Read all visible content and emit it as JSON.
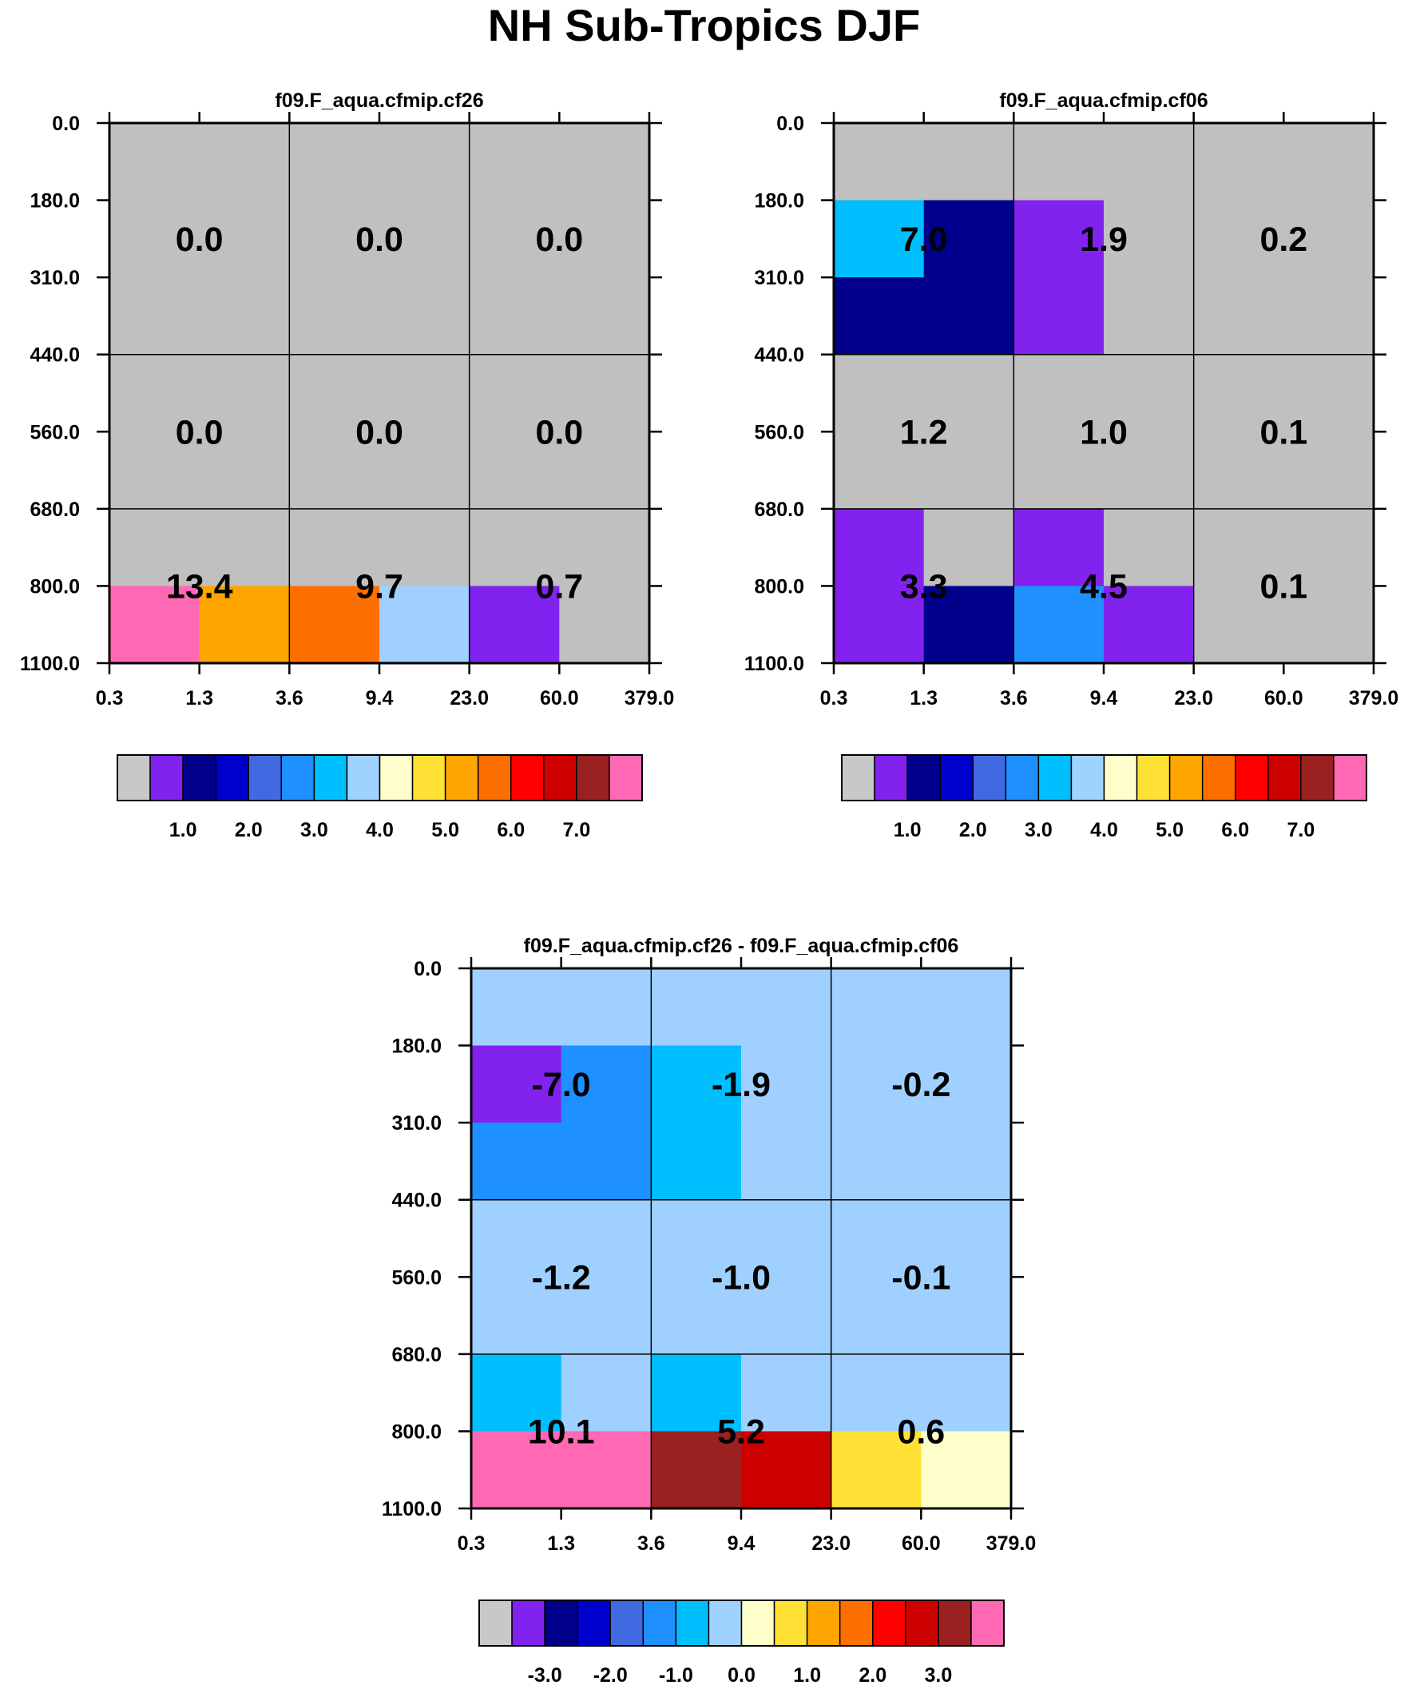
{
  "page_title": "NH Sub-Tropics DJF",
  "colors": {
    "cell_border": "#000000",
    "value_text": "#000000"
  },
  "chart_data": [
    {
      "type": "heatmap",
      "title": "f09.F_aqua.cfmip.cf26",
      "x_tick_labels": [
        "0.3",
        "1.3",
        "3.6",
        "9.4",
        "23.0",
        "60.0",
        "379.0"
      ],
      "y_tick_labels": [
        "0.0",
        "180.0",
        "310.0",
        "440.0",
        "560.0",
        "680.0",
        "800.0",
        "1100.0"
      ],
      "fine_colors": [
        [
          "#C0C0C0",
          "#C0C0C0",
          "#C0C0C0",
          "#C0C0C0",
          "#C0C0C0",
          "#C0C0C0"
        ],
        [
          "#C0C0C0",
          "#C0C0C0",
          "#C0C0C0",
          "#C0C0C0",
          "#C0C0C0",
          "#C0C0C0"
        ],
        [
          "#C0C0C0",
          "#C0C0C0",
          "#C0C0C0",
          "#C0C0C0",
          "#C0C0C0",
          "#C0C0C0"
        ],
        [
          "#C0C0C0",
          "#C0C0C0",
          "#C0C0C0",
          "#C0C0C0",
          "#C0C0C0",
          "#C0C0C0"
        ],
        [
          "#C0C0C0",
          "#C0C0C0",
          "#C0C0C0",
          "#C0C0C0",
          "#C0C0C0",
          "#C0C0C0"
        ],
        [
          "#C0C0C0",
          "#C0C0C0",
          "#C0C0C0",
          "#C0C0C0",
          "#C0C0C0",
          "#C0C0C0"
        ],
        [
          "#FF69B4",
          "#FFA500",
          "#FF6F00",
          "#A0D0FF",
          "#8222EE",
          "#C0C0C0"
        ]
      ],
      "coarse_values": [
        [
          "0.0",
          "0.0",
          "0.0"
        ],
        [
          "0.0",
          "0.0",
          "0.0"
        ],
        [
          "13.4",
          "9.7",
          "0.7"
        ]
      ],
      "colorbar": {
        "colors": [
          "#C8C8C8",
          "#8222EE",
          "#00008B",
          "#0000CD",
          "#4169E1",
          "#1E90FF",
          "#00BFFF",
          "#A0D2FF",
          "#FFFFCC",
          "#FFE135",
          "#FFA500",
          "#FF6F00",
          "#FF0000",
          "#CD0000",
          "#9B2020",
          "#FF69B4"
        ],
        "labels": [
          "1.0",
          "2.0",
          "3.0",
          "4.0",
          "5.0",
          "6.0",
          "7.0"
        ]
      }
    },
    {
      "type": "heatmap",
      "title": "f09.F_aqua.cfmip.cf06",
      "x_tick_labels": [
        "0.3",
        "1.3",
        "3.6",
        "9.4",
        "23.0",
        "60.0",
        "379.0"
      ],
      "y_tick_labels": [
        "0.0",
        "180.0",
        "310.0",
        "440.0",
        "560.0",
        "680.0",
        "800.0",
        "1100.0"
      ],
      "fine_colors": [
        [
          "#C0C0C0",
          "#C0C0C0",
          "#C0C0C0",
          "#C0C0C0",
          "#C0C0C0",
          "#C0C0C0"
        ],
        [
          "#00BFFF",
          "#00008B",
          "#8222EE",
          "#C0C0C0",
          "#C0C0C0",
          "#C0C0C0"
        ],
        [
          "#00008B",
          "#00008B",
          "#8222EE",
          "#C0C0C0",
          "#C0C0C0",
          "#C0C0C0"
        ],
        [
          "#C0C0C0",
          "#C0C0C0",
          "#C0C0C0",
          "#C0C0C0",
          "#C0C0C0",
          "#C0C0C0"
        ],
        [
          "#C0C0C0",
          "#C0C0C0",
          "#C0C0C0",
          "#C0C0C0",
          "#C0C0C0",
          "#C0C0C0"
        ],
        [
          "#8222EE",
          "#C0C0C0",
          "#8222EE",
          "#C0C0C0",
          "#C0C0C0",
          "#C0C0C0"
        ],
        [
          "#8222EE",
          "#00008B",
          "#1E90FF",
          "#8222EE",
          "#C0C0C0",
          "#C0C0C0"
        ]
      ],
      "coarse_values": [
        [
          "7.0",
          "1.9",
          "0.2"
        ],
        [
          "1.2",
          "1.0",
          "0.1"
        ],
        [
          "3.3",
          "4.5",
          "0.1"
        ]
      ],
      "colorbar": {
        "colors": [
          "#C8C8C8",
          "#8222EE",
          "#00008B",
          "#0000CD",
          "#4169E1",
          "#1E90FF",
          "#00BFFF",
          "#A0D2FF",
          "#FFFFCC",
          "#FFE135",
          "#FFA500",
          "#FF6F00",
          "#FF0000",
          "#CD0000",
          "#9B2020",
          "#FF69B4"
        ],
        "labels": [
          "1.0",
          "2.0",
          "3.0",
          "4.0",
          "5.0",
          "6.0",
          "7.0"
        ]
      }
    },
    {
      "type": "heatmap",
      "title": "f09.F_aqua.cfmip.cf26 - f09.F_aqua.cfmip.cf06",
      "x_tick_labels": [
        "0.3",
        "1.3",
        "3.6",
        "9.4",
        "23.0",
        "60.0",
        "379.0"
      ],
      "y_tick_labels": [
        "0.0",
        "180.0",
        "310.0",
        "440.0",
        "560.0",
        "680.0",
        "800.0",
        "1100.0"
      ],
      "fine_colors": [
        [
          "#A0D0FF",
          "#A0D0FF",
          "#A0D0FF",
          "#A0D0FF",
          "#A0D0FF",
          "#A0D0FF"
        ],
        [
          "#8222EE",
          "#1E90FF",
          "#00BFFF",
          "#A0D0FF",
          "#A0D0FF",
          "#A0D0FF"
        ],
        [
          "#1E90FF",
          "#1E90FF",
          "#00BFFF",
          "#A0D0FF",
          "#A0D0FF",
          "#A0D0FF"
        ],
        [
          "#A0D0FF",
          "#A0D0FF",
          "#A0D0FF",
          "#A0D0FF",
          "#A0D0FF",
          "#A0D0FF"
        ],
        [
          "#A0D0FF",
          "#A0D0FF",
          "#A0D0FF",
          "#A0D0FF",
          "#A0D0FF",
          "#A0D0FF"
        ],
        [
          "#00BFFF",
          "#A0D0FF",
          "#00BFFF",
          "#A0D0FF",
          "#A0D0FF",
          "#A0D0FF"
        ],
        [
          "#FF69B4",
          "#FF69B4",
          "#9B2020",
          "#CD0000",
          "#FFE135",
          "#FFFFCC"
        ]
      ],
      "coarse_values": [
        [
          "-7.0",
          "-1.9",
          "-0.2"
        ],
        [
          "-1.2",
          "-1.0",
          "-0.1"
        ],
        [
          "10.1",
          "5.2",
          "0.6"
        ]
      ],
      "colorbar": {
        "colors": [
          "#C8C8C8",
          "#8222EE",
          "#00008B",
          "#0000CD",
          "#4169E1",
          "#1E90FF",
          "#00BFFF",
          "#A0D2FF",
          "#FFFFCC",
          "#FFE135",
          "#FFA500",
          "#FF6F00",
          "#FF0000",
          "#CD0000",
          "#9B2020",
          "#FF69B4"
        ],
        "labels": [
          "-3.0",
          "-2.0",
          "-1.0",
          "0.0",
          "1.0",
          "2.0",
          "3.0"
        ]
      }
    }
  ]
}
